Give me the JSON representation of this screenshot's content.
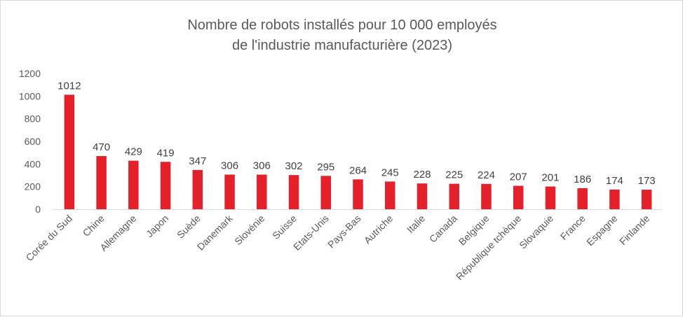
{
  "chart_data": {
    "type": "bar",
    "title": "Nombre de robots installés pour 10 000 employés",
    "subtitle": "de l'industrie manufacturière (2023)",
    "xlabel": "",
    "ylabel": "",
    "ylim": [
      0,
      1200
    ],
    "yticks": [
      "1200",
      "1000",
      "800",
      "600",
      "400",
      "200",
      "0"
    ],
    "grid": false,
    "legend": "none",
    "bar_color": "#e4202a",
    "categories": [
      "Corée du Sud",
      "Chine",
      "Allemagne",
      "Japon",
      "Suède",
      "Danemark",
      "Slovénie",
      "Suisse",
      "Etats-Unis",
      "Pays-Bas",
      "Autriche",
      "Italie",
      "Canada",
      "Belgique",
      "République tchèque",
      "Slovaquie",
      "France",
      "Espagne",
      "Finlande"
    ],
    "values": [
      1012,
      470,
      429,
      419,
      347,
      306,
      306,
      302,
      295,
      264,
      245,
      228,
      225,
      224,
      207,
      201,
      186,
      174,
      173
    ]
  }
}
